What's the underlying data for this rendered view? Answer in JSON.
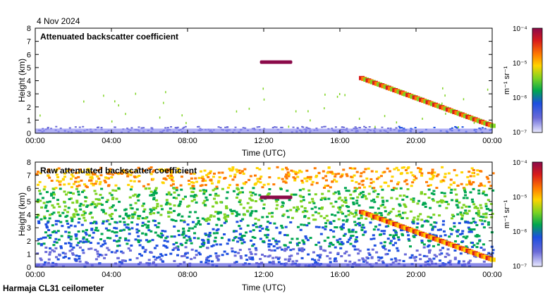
{
  "date_label": "4 Nov 2024",
  "footer_label": "Harmaja CL31 ceilometer",
  "colorbar": {
    "unit_label": "m⁻¹ sr⁻¹",
    "tick_labels": [
      "10⁻⁴",
      "10⁻⁵",
      "10⁻⁶",
      "10⁻⁷"
    ],
    "colors": [
      "#8b0a4a",
      "#d81b1b",
      "#ff7a00",
      "#ffd400",
      "#7ed321",
      "#00a650",
      "#1d4fe0",
      "#6a6ad8",
      "#e9e9ff"
    ]
  },
  "chart_data": [
    {
      "type": "heatmap",
      "title": "Attenuated backscatter coefficient",
      "xlabel": "Time (UTC)",
      "ylabel": "Height (km)",
      "xticks": [
        "00:00",
        "04:00",
        "08:00",
        "12:00",
        "16:00",
        "20:00",
        "00:00"
      ],
      "yticks": [
        "0",
        "1",
        "2",
        "3",
        "4",
        "5",
        "6",
        "7",
        "8"
      ],
      "ylim": [
        0,
        8
      ],
      "colorscale": "log",
      "zlim": [
        "1e-7",
        "1e-4"
      ],
      "features": [
        {
          "name": "cloud layer",
          "t_start_h": 11.8,
          "t_end_h": 13.5,
          "height_km": 5.4
        },
        {
          "name": "descending cloud band",
          "t_start_h": 17.0,
          "t_end_h": 24.0,
          "height_start_km": 4.2,
          "height_end_km": 0.5
        },
        {
          "name": "boundary layer",
          "t_start_h": 0,
          "t_end_h": 24,
          "height_km": 0.4
        }
      ]
    },
    {
      "type": "heatmap",
      "title": "Raw attenuated backscatter coefficient",
      "xlabel": "Time (UTC)",
      "ylabel": "Height (km)",
      "xticks": [
        "00:00",
        "04:00",
        "08:00",
        "12:00",
        "16:00",
        "20:00",
        "00:00"
      ],
      "yticks": [
        "0",
        "1",
        "2",
        "3",
        "4",
        "5",
        "6",
        "7",
        "8"
      ],
      "ylim": [
        0,
        8
      ],
      "colorscale": "log",
      "zlim": [
        "1e-7",
        "1e-4"
      ]
    }
  ]
}
